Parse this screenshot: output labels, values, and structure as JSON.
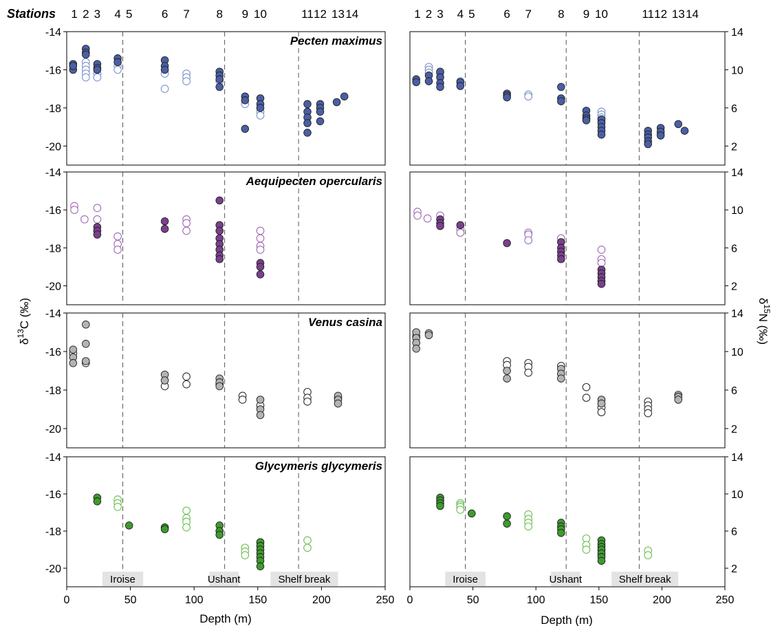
{
  "figure": {
    "stations_title": "Stations",
    "yaxis_left_title": "δ13C (‰)",
    "yaxis_right_title": "δ15N (‰)",
    "xaxis_title": "Depth (m)"
  },
  "chart_data": {
    "type": "scatter",
    "x_ticks": [
      0,
      50,
      100,
      150,
      200,
      250
    ],
    "xlim": [
      0,
      250
    ],
    "d13C_ticks": [
      -14,
      -16,
      -18,
      -20
    ],
    "d13C_lim": [
      -21,
      -14
    ],
    "d15N_ticks": [
      14,
      10,
      6,
      2
    ],
    "d15N_lim": [
      0,
      14
    ],
    "stations": [
      {
        "label": "1",
        "depth": 6
      },
      {
        "label": "2",
        "depth": 15
      },
      {
        "label": "3",
        "depth": 24
      },
      {
        "label": "4",
        "depth": 40
      },
      {
        "label": "5",
        "depth": 49
      },
      {
        "label": "6",
        "depth": 77
      },
      {
        "label": "7",
        "depth": 94
      },
      {
        "label": "8",
        "depth": 120
      },
      {
        "label": "9",
        "depth": 140
      },
      {
        "label": "10",
        "depth": 152
      },
      {
        "label": "11",
        "depth": 189
      },
      {
        "label": "12",
        "depth": 199
      },
      {
        "label": "13",
        "depth": 213
      },
      {
        "label": "14",
        "depth": 224
      }
    ],
    "boundaries": [
      44,
      124,
      182
    ],
    "regions": [
      {
        "label": "Iroise",
        "from": 28,
        "to": 60
      },
      {
        "label": "Ushant",
        "from": 112,
        "to": 135
      },
      {
        "label": "Shelf break",
        "from": 160,
        "to": 213
      }
    ],
    "species": [
      {
        "name": "Pecten maximus",
        "filled_color": "#4A5FA5",
        "open_color": "#7E92CC",
        "c13_filled": [
          [
            5,
            -15.7
          ],
          [
            5,
            -16.0
          ],
          [
            5,
            -15.8
          ],
          [
            15,
            -14.9
          ],
          [
            15,
            -15.1
          ],
          [
            15,
            -15.2
          ],
          [
            24,
            -15.7
          ],
          [
            24,
            -15.9
          ],
          [
            24,
            -16.0
          ],
          [
            40,
            -15.4
          ],
          [
            40,
            -15.6
          ],
          [
            77,
            -15.5
          ],
          [
            77,
            -15.8
          ],
          [
            77,
            -16.0
          ],
          [
            120,
            -16.1
          ],
          [
            120,
            -16.3
          ],
          [
            120,
            -16.5
          ],
          [
            120,
            -16.9
          ],
          [
            140,
            -17.4
          ],
          [
            140,
            -17.6
          ],
          [
            140,
            -19.1
          ],
          [
            152,
            -17.5
          ],
          [
            152,
            -17.8
          ],
          [
            152,
            -18.0
          ],
          [
            189,
            -17.8
          ],
          [
            189,
            -18.2
          ],
          [
            189,
            -18.5
          ],
          [
            189,
            -18.8
          ],
          [
            189,
            -19.3
          ],
          [
            199,
            -17.8
          ],
          [
            199,
            -18.0
          ],
          [
            199,
            -18.2
          ],
          [
            199,
            -18.7
          ],
          [
            212,
            -17.7
          ],
          [
            218,
            -17.4
          ]
        ],
        "c13_open": [
          [
            15,
            -15.6
          ],
          [
            15,
            -15.8
          ],
          [
            15,
            -16.0
          ],
          [
            15,
            -16.2
          ],
          [
            15,
            -16.4
          ],
          [
            24,
            -16.2
          ],
          [
            24,
            -16.4
          ],
          [
            40,
            -15.8
          ],
          [
            40,
            -16.0
          ],
          [
            77,
            -16.2
          ],
          [
            77,
            -17.0
          ],
          [
            94,
            -16.2
          ],
          [
            94,
            -16.4
          ],
          [
            94,
            -16.6
          ],
          [
            120,
            -16.6
          ],
          [
            140,
            -17.8
          ],
          [
            152,
            -18.2
          ],
          [
            152,
            -18.4
          ]
        ],
        "n15_filled": [
          [
            5,
            9.0
          ],
          [
            5,
            8.7
          ],
          [
            15,
            9.4
          ],
          [
            15,
            8.8
          ],
          [
            24,
            9.8
          ],
          [
            24,
            9.2
          ],
          [
            24,
            8.6
          ],
          [
            24,
            8.2
          ],
          [
            40,
            8.7
          ],
          [
            40,
            8.3
          ],
          [
            77,
            7.5
          ],
          [
            77,
            7.3
          ],
          [
            77,
            7.1
          ],
          [
            120,
            8.2
          ],
          [
            120,
            7.0
          ],
          [
            120,
            6.7
          ],
          [
            140,
            5.7
          ],
          [
            140,
            5.2
          ],
          [
            140,
            4.9
          ],
          [
            140,
            4.7
          ],
          [
            152,
            4.8
          ],
          [
            152,
            4.4
          ],
          [
            152,
            4.0
          ],
          [
            152,
            3.6
          ],
          [
            152,
            3.2
          ],
          [
            189,
            3.6
          ],
          [
            189,
            3.2
          ],
          [
            189,
            2.9
          ],
          [
            189,
            2.5
          ],
          [
            189,
            2.2
          ],
          [
            199,
            3.9
          ],
          [
            199,
            3.5
          ],
          [
            199,
            3.1
          ],
          [
            213,
            4.3
          ],
          [
            218,
            3.6
          ]
        ],
        "n15_open": [
          [
            15,
            10.3
          ],
          [
            15,
            10.0
          ],
          [
            15,
            9.7
          ],
          [
            24,
            9.6
          ],
          [
            40,
            8.8
          ],
          [
            94,
            7.4
          ],
          [
            94,
            7.2
          ],
          [
            152,
            5.6
          ],
          [
            152,
            5.3
          ],
          [
            152,
            5.0
          ],
          [
            152,
            4.6
          ],
          [
            199,
            3.3
          ]
        ]
      },
      {
        "name": "Aequipecten opercularis",
        "filled_color": "#7B3F8E",
        "open_color": "#A06BB5",
        "c13_filled": [
          [
            24,
            -16.9
          ],
          [
            24,
            -17.1
          ],
          [
            24,
            -17.3
          ],
          [
            77,
            -16.6
          ],
          [
            77,
            -17.0
          ],
          [
            120,
            -15.5
          ],
          [
            120,
            -16.8
          ],
          [
            120,
            -17.1
          ],
          [
            120,
            -17.5
          ],
          [
            120,
            -17.8
          ],
          [
            120,
            -18.1
          ],
          [
            120,
            -18.4
          ],
          [
            120,
            -18.6
          ],
          [
            152,
            -18.8
          ],
          [
            152,
            -19.0
          ],
          [
            152,
            -19.4
          ]
        ],
        "c13_open": [
          [
            6,
            -15.8
          ],
          [
            6,
            -16.0
          ],
          [
            14,
            -16.5
          ],
          [
            24,
            -15.9
          ],
          [
            24,
            -16.5
          ],
          [
            40,
            -17.4
          ],
          [
            40,
            -17.8
          ],
          [
            40,
            -18.1
          ],
          [
            94,
            -16.5
          ],
          [
            94,
            -16.7
          ],
          [
            94,
            -17.1
          ],
          [
            152,
            -17.1
          ],
          [
            152,
            -17.5
          ],
          [
            152,
            -17.9
          ],
          [
            152,
            -18.1
          ]
        ],
        "n15_filled": [
          [
            24,
            9.0
          ],
          [
            24,
            8.6
          ],
          [
            24,
            8.3
          ],
          [
            40,
            8.4
          ],
          [
            77,
            6.5
          ],
          [
            120,
            6.6
          ],
          [
            120,
            6.0
          ],
          [
            120,
            5.6
          ],
          [
            120,
            5.2
          ],
          [
            120,
            4.8
          ],
          [
            152,
            3.7
          ],
          [
            152,
            3.3
          ],
          [
            152,
            2.9
          ],
          [
            152,
            2.5
          ],
          [
            152,
            2.2
          ]
        ],
        "n15_open": [
          [
            6,
            9.8
          ],
          [
            6,
            9.4
          ],
          [
            14,
            9.1
          ],
          [
            24,
            9.4
          ],
          [
            40,
            8.0
          ],
          [
            40,
            7.6
          ],
          [
            94,
            7.6
          ],
          [
            94,
            7.4
          ],
          [
            94,
            6.8
          ],
          [
            120,
            7.0
          ],
          [
            152,
            5.8
          ],
          [
            152,
            4.8
          ],
          [
            152,
            4.4
          ]
        ]
      },
      {
        "name": "Venus casina",
        "filled_color": "#B3B3B3",
        "open_color": "#FFFFFF",
        "c13_filled": [
          [
            5,
            -15.9
          ],
          [
            5,
            -16.3
          ],
          [
            5,
            -16.6
          ],
          [
            15,
            -14.6
          ],
          [
            15,
            -15.6
          ],
          [
            15,
            -16.5
          ],
          [
            77,
            -17.2
          ],
          [
            77,
            -17.5
          ],
          [
            120,
            -17.4
          ],
          [
            120,
            -17.6
          ],
          [
            120,
            -17.8
          ],
          [
            152,
            -18.5
          ],
          [
            152,
            -19.0
          ],
          [
            152,
            -19.3
          ],
          [
            213,
            -18.3
          ],
          [
            213,
            -18.5
          ],
          [
            213,
            -18.7
          ]
        ],
        "c13_open": [
          [
            5,
            -16.1
          ],
          [
            15,
            -16.6
          ],
          [
            77,
            -17.8
          ],
          [
            94,
            -17.3
          ],
          [
            94,
            -17.7
          ],
          [
            120,
            -17.7
          ],
          [
            138,
            -18.3
          ],
          [
            138,
            -18.5
          ],
          [
            152,
            -18.8
          ],
          [
            189,
            -18.1
          ],
          [
            189,
            -18.4
          ],
          [
            189,
            -18.6
          ],
          [
            213,
            -18.4
          ]
        ],
        "n15_filled": [
          [
            5,
            12.0
          ],
          [
            5,
            11.4
          ],
          [
            5,
            10.9
          ],
          [
            5,
            10.3
          ],
          [
            15,
            11.9
          ],
          [
            15,
            11.7
          ],
          [
            77,
            8.0
          ],
          [
            77,
            7.2
          ],
          [
            120,
            8.2
          ],
          [
            120,
            7.7
          ],
          [
            120,
            7.2
          ],
          [
            152,
            5.0
          ],
          [
            152,
            4.6
          ],
          [
            213,
            5.5
          ],
          [
            213,
            5.3
          ],
          [
            213,
            5.0
          ]
        ],
        "n15_open": [
          [
            5,
            11.6
          ],
          [
            77,
            9.0
          ],
          [
            77,
            8.6
          ],
          [
            94,
            8.8
          ],
          [
            94,
            8.4
          ],
          [
            94,
            7.8
          ],
          [
            120,
            8.5
          ],
          [
            140,
            6.3
          ],
          [
            140,
            5.2
          ],
          [
            152,
            4.2
          ],
          [
            152,
            3.7
          ],
          [
            189,
            4.8
          ],
          [
            189,
            4.4
          ],
          [
            189,
            4.0
          ],
          [
            189,
            3.6
          ]
        ]
      },
      {
        "name": "Glycymeris glycymeris",
        "filled_color": "#3E9B2E",
        "open_color": "#6CBF52",
        "c13_filled": [
          [
            24,
            -16.2
          ],
          [
            24,
            -16.4
          ],
          [
            49,
            -17.7
          ],
          [
            77,
            -17.8
          ],
          [
            77,
            -17.9
          ],
          [
            120,
            -17.7
          ],
          [
            120,
            -18.0
          ],
          [
            120,
            -18.2
          ],
          [
            152,
            -18.6
          ],
          [
            152,
            -18.8
          ],
          [
            152,
            -19.0
          ],
          [
            152,
            -19.2
          ],
          [
            152,
            -19.4
          ],
          [
            152,
            -19.6
          ],
          [
            152,
            -19.9
          ]
        ],
        "c13_open": [
          [
            40,
            -16.3
          ],
          [
            40,
            -16.5
          ],
          [
            40,
            -16.7
          ],
          [
            94,
            -16.9
          ],
          [
            94,
            -17.3
          ],
          [
            94,
            -17.5
          ],
          [
            94,
            -17.8
          ],
          [
            140,
            -18.9
          ],
          [
            140,
            -19.1
          ],
          [
            140,
            -19.3
          ],
          [
            152,
            -18.6
          ],
          [
            189,
            -18.5
          ],
          [
            189,
            -18.9
          ]
        ],
        "n15_filled": [
          [
            24,
            9.6
          ],
          [
            24,
            9.3
          ],
          [
            24,
            9.0
          ],
          [
            24,
            8.7
          ],
          [
            49,
            7.9
          ],
          [
            77,
            7.6
          ],
          [
            77,
            6.8
          ],
          [
            120,
            6.9
          ],
          [
            120,
            6.5
          ],
          [
            120,
            6.2
          ],
          [
            120,
            5.8
          ],
          [
            152,
            5.0
          ],
          [
            152,
            4.6
          ],
          [
            152,
            4.3
          ],
          [
            152,
            4.0
          ],
          [
            152,
            3.6
          ],
          [
            152,
            3.2
          ],
          [
            152,
            2.8
          ]
        ],
        "n15_open": [
          [
            40,
            9.0
          ],
          [
            40,
            8.8
          ],
          [
            40,
            8.6
          ],
          [
            40,
            8.3
          ],
          [
            94,
            7.8
          ],
          [
            94,
            7.3
          ],
          [
            94,
            6.9
          ],
          [
            94,
            6.5
          ],
          [
            140,
            5.2
          ],
          [
            140,
            4.5
          ],
          [
            140,
            4.0
          ],
          [
            152,
            3.9
          ],
          [
            152,
            3.4
          ],
          [
            189,
            3.9
          ],
          [
            189,
            3.4
          ]
        ]
      }
    ]
  }
}
